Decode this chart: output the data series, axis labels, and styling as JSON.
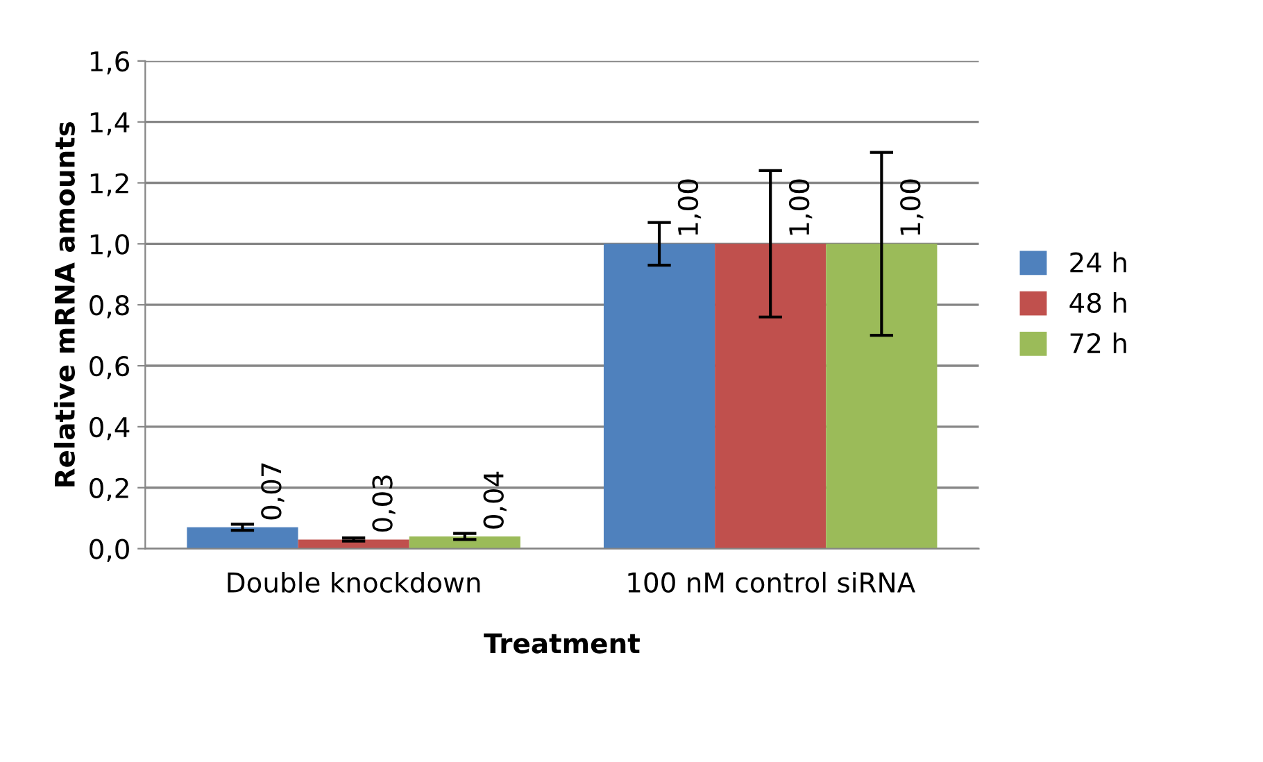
{
  "chart_data": {
    "type": "bar",
    "xlabel": "Treatment",
    "ylabel": "Relative mRNA amounts",
    "categories": [
      "Double knockdown",
      "100 nM control siRNA"
    ],
    "series": [
      {
        "name": "24 h",
        "color": "#4f81bd",
        "values": [
          0.07,
          1.0
        ],
        "errors": [
          0.01,
          0.07
        ],
        "value_labels": [
          "0,07",
          "1,00"
        ]
      },
      {
        "name": "48 h",
        "color": "#c0504d",
        "values": [
          0.03,
          1.0
        ],
        "errors": [
          0.005,
          0.24
        ],
        "value_labels": [
          "0,03",
          "1,00"
        ]
      },
      {
        "name": "72 h",
        "color": "#9bbb59",
        "values": [
          0.04,
          1.0
        ],
        "errors": [
          0.01,
          0.3
        ],
        "value_labels": [
          "0,04",
          "1,00"
        ]
      }
    ],
    "ylim": [
      0,
      1.6
    ],
    "yticks": [
      {
        "value": 0,
        "label": "0,0"
      },
      {
        "value": 0.2,
        "label": "0,2"
      },
      {
        "value": 0.4,
        "label": "0,4"
      },
      {
        "value": 0.6,
        "label": "0,6"
      },
      {
        "value": 0.8,
        "label": "0,8"
      },
      {
        "value": 1.0,
        "label": "1,0"
      },
      {
        "value": 1.2,
        "label": "1,2"
      },
      {
        "value": 1.4,
        "label": "1,4"
      },
      {
        "value": 1.6,
        "label": "1,6"
      }
    ],
    "grid": "y",
    "legend": "right"
  }
}
